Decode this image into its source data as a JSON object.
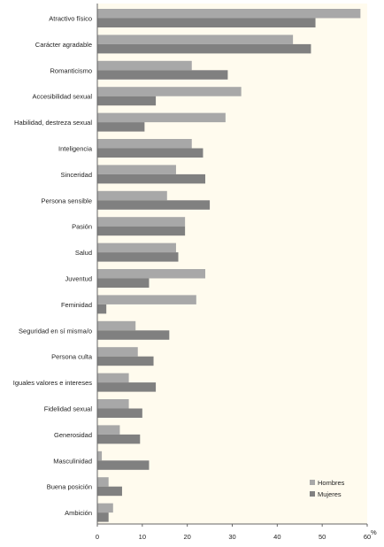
{
  "chart_data": {
    "type": "bar",
    "orientation": "horizontal",
    "unit_label": "%",
    "xlim": [
      0,
      60
    ],
    "xticks": [
      0,
      10,
      20,
      30,
      40,
      50,
      60
    ],
    "grid": false,
    "legend_position": "bottom-right",
    "categories": [
      "Atractivo físico",
      "Carácter agradable",
      "Romanticismo",
      "Accesibilidad sexual",
      "Habilidad, destreza sexual",
      "Inteligencia",
      "Sinceridad",
      "Persona sensible",
      "Pasión",
      "Salud",
      "Juventud",
      "Feminidad",
      "Seguridad en sí misma/o",
      "Persona culta",
      "Iguales valores e intereses",
      "Fidelidad sexual",
      "Generosidad",
      "Masculinidad",
      "Buena posición",
      "Ambición"
    ],
    "series": [
      {
        "name": "Hombres",
        "color": "#a8a8a8",
        "values": [
          58.5,
          43.5,
          21,
          32,
          28.5,
          21,
          17.5,
          15.5,
          19.5,
          17.5,
          24,
          22,
          8.5,
          9,
          7,
          7,
          5,
          1,
          2.5,
          3.5
        ]
      },
      {
        "name": "Mujeres",
        "color": "#808080",
        "values": [
          48.5,
          47.5,
          29,
          13,
          10.5,
          23.5,
          24,
          25,
          19.5,
          18,
          11.5,
          2,
          16,
          12.5,
          13,
          10,
          9.5,
          11.5,
          5.5,
          2.5
        ]
      }
    ]
  },
  "colors": {
    "plot_background": "#fffbee",
    "axis": "#666666"
  }
}
